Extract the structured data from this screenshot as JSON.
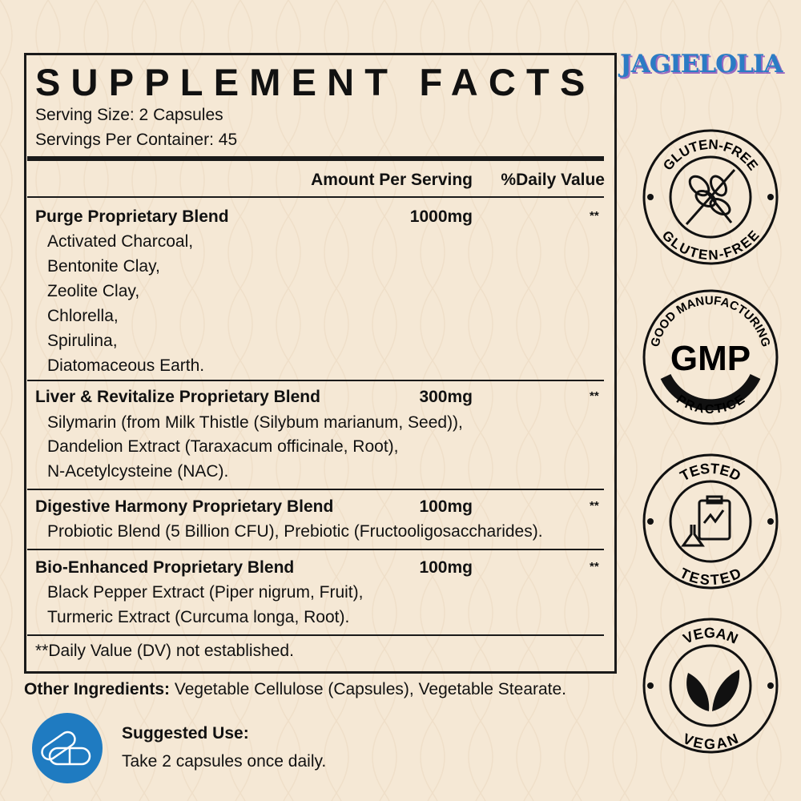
{
  "brand": "JAGIELOLIA",
  "title": "SUPPLEMENT FACTS",
  "serving_size": "Serving Size: 2 Capsules",
  "servings_per_container": "Servings Per Container: 45",
  "header": {
    "amount": "Amount Per Serving",
    "dv": "%Daily Value"
  },
  "blends": [
    {
      "name": "Purge Proprietary Blend",
      "amount": "1000mg",
      "dv": "**",
      "items": [
        "Activated Charcoal,",
        "Bentonite Clay,",
        "Zeolite Clay,",
        "Chlorella,",
        "Spirulina,",
        "Diatomaceous Earth."
      ]
    },
    {
      "name": "Liver & Revitalize Proprietary Blend",
      "amount": "300mg",
      "dv": "**",
      "items": [
        "Silymarin (from Milk Thistle (Silybum marianum, Seed)),",
        "Dandelion Extract (Taraxacum officinale, Root),",
        "N-Acetylcysteine (NAC)."
      ]
    },
    {
      "name": "Digestive Harmony Proprietary Blend",
      "amount": "100mg",
      "dv": "**",
      "items": [
        "Probiotic Blend (5 Billion CFU), Prebiotic (Fructooligosaccharides)."
      ]
    },
    {
      "name": "Bio-Enhanced Proprietary Blend",
      "amount": "100mg",
      "dv": "**",
      "items": [
        "Black Pepper Extract (Piper nigrum, Fruit),",
        "Turmeric Extract (Curcuma longa, Root)."
      ]
    }
  ],
  "footnote": "**Daily Value (DV) not established.",
  "other_ingredients": {
    "label": "Other Ingredients:",
    "value": " Vegetable Cellulose (Capsules), Vegetable Stearate."
  },
  "suggested_use": {
    "label": "Suggested Use:",
    "value": "Take 2 capsules once daily.",
    "icon": "capsules-icon"
  },
  "badges": [
    {
      "top": "GLUTEN-FREE",
      "bottom": "GLUTEN-FREE",
      "icon": "wheat-crossed-icon"
    },
    {
      "top": "GOOD MANUFACTURING",
      "bottom": "PRACTICE",
      "center": "GMP"
    },
    {
      "top": "TESTED",
      "bottom": "TESTED",
      "icon": "lab-test-icon"
    },
    {
      "top": "VEGAN",
      "bottom": "VEGAN",
      "icon": "leaves-icon"
    }
  ],
  "colors": {
    "background": "#f5e8d5",
    "accent": "#1f7bc1",
    "text": "#111111"
  }
}
